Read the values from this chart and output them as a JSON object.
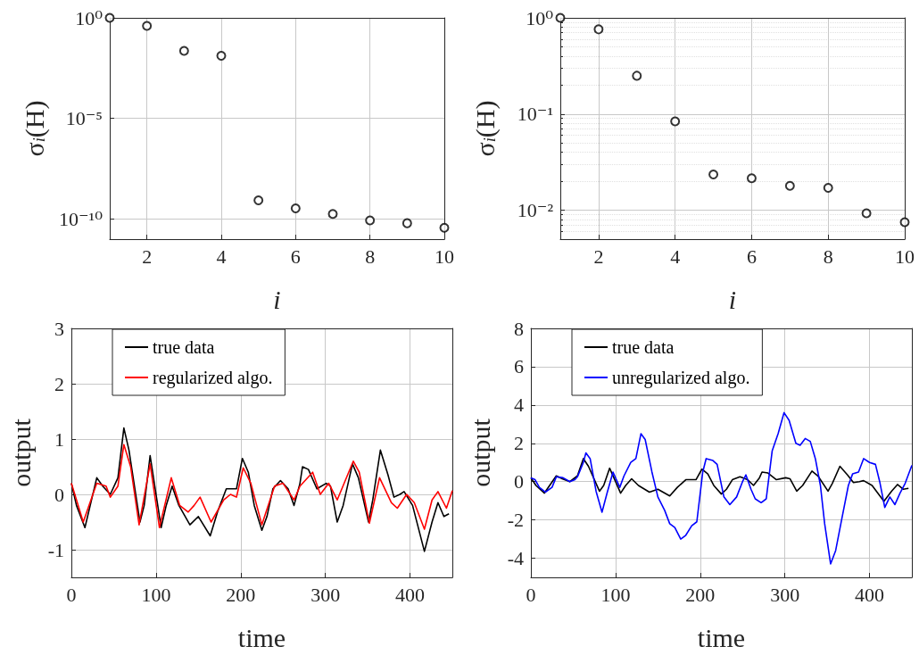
{
  "chart_data": [
    {
      "type": "scatter",
      "xlabel": "i",
      "ylabel": "σ$_{i}$(H)",
      "log": "y",
      "grid": true,
      "marker": "circle",
      "xlim": [
        1,
        10
      ],
      "xticks": [
        2,
        4,
        6,
        8,
        10
      ],
      "ylim": [
        1e-11,
        1
      ],
      "yticks": [
        {
          "value": 1,
          "label": "10⁰"
        },
        {
          "value": 1e-05,
          "label": "10⁻⁵"
        },
        {
          "value": 1e-10,
          "label": "10⁻¹⁰"
        }
      ],
      "series": [
        {
          "color": "#000000",
          "x": [
            1,
            2,
            3,
            4,
            5,
            6,
            7,
            8,
            9,
            10
          ],
          "values": [
            1,
            0.4,
            0.023,
            0.013,
            8.5e-10,
            3.4e-10,
            1.8e-10,
            8.5e-11,
            6.2e-11,
            3.7e-11
          ]
        }
      ]
    },
    {
      "type": "scatter",
      "xlabel": "i",
      "ylabel": "σ$_{i}$(H)",
      "log": "y",
      "grid": true,
      "marker": "circle",
      "xlim": [
        1,
        10
      ],
      "xticks": [
        2,
        4,
        6,
        8,
        10
      ],
      "ylim": [
        0.005,
        1
      ],
      "yticks": [
        {
          "value": 1,
          "label": "10⁰"
        },
        {
          "value": 0.1,
          "label": "10⁻¹"
        },
        {
          "value": 0.01,
          "label": "10⁻²"
        }
      ],
      "series": [
        {
          "color": "#000000",
          "x": [
            1,
            2,
            3,
            4,
            5,
            6,
            7,
            8,
            9,
            10
          ],
          "values": [
            1,
            0.76,
            0.25,
            0.084,
            0.0235,
            0.0215,
            0.0179,
            0.0171,
            0.0093,
            0.0075
          ]
        }
      ]
    },
    {
      "type": "line",
      "xlabel": "time",
      "ylabel": "output",
      "grid": true,
      "legend": "top left",
      "xlim": [
        0,
        450
      ],
      "xticks": [
        0,
        100,
        200,
        300,
        400
      ],
      "ylim": [
        -1.5,
        3
      ],
      "yticks": [
        -1,
        0,
        1,
        2,
        3
      ],
      "series": [
        {
          "name": "true data",
          "color": "#000000",
          "x": [
            0,
            6,
            16,
            30,
            37,
            46,
            55,
            62,
            68,
            81,
            86,
            93,
            100,
            106,
            112,
            119,
            127,
            140,
            150,
            164,
            173,
            183,
            190,
            195,
            202,
            209,
            216,
            225,
            231,
            238,
            247,
            256,
            263,
            270,
            273,
            280,
            290,
            301,
            306,
            314,
            321,
            332,
            339,
            351,
            356,
            365,
            374,
            381,
            388,
            393,
            403,
            417,
            426,
            433,
            440,
            446
          ],
          "values": [
            0.2,
            -0.2,
            -0.6,
            0.3,
            0.15,
            0.0,
            0.3,
            1.2,
            0.8,
            -0.5,
            -0.2,
            0.7,
            0.0,
            -0.6,
            -0.2,
            0.15,
            -0.2,
            -0.55,
            -0.4,
            -0.75,
            -0.3,
            0.1,
            0.1,
            0.1,
            0.65,
            0.4,
            -0.2,
            -0.65,
            -0.4,
            0.1,
            0.25,
            0.1,
            -0.2,
            0.2,
            0.5,
            0.45,
            0.1,
            0.2,
            0.15,
            -0.5,
            -0.2,
            0.55,
            0.3,
            -0.5,
            -0.1,
            0.8,
            0.35,
            -0.05,
            0.0,
            0.05,
            -0.2,
            -1.03,
            -0.5,
            -0.15,
            -0.4,
            -0.35
          ]
        },
        {
          "name": "regularized algo.",
          "color": "#ff0000",
          "x": [
            0,
            14,
            30,
            41,
            46,
            55,
            62,
            70,
            80,
            93,
            104,
            118,
            128,
            138,
            145,
            152,
            165,
            180,
            188,
            195,
            203,
            212,
            225,
            240,
            250,
            263,
            270,
            285,
            294,
            304,
            314,
            333,
            340,
            352,
            364,
            378,
            385,
            396,
            405,
            417,
            426,
            433,
            443,
            450
          ],
          "values": [
            0.2,
            -0.5,
            0.2,
            0.15,
            -0.05,
            0.15,
            0.9,
            0.5,
            -0.55,
            0.55,
            -0.6,
            0.3,
            -0.2,
            -0.32,
            -0.2,
            -0.05,
            -0.5,
            -0.1,
            0.0,
            -0.05,
            0.48,
            0.2,
            -0.55,
            0.15,
            0.2,
            -0.1,
            0.15,
            0.4,
            0.0,
            0.2,
            -0.1,
            0.6,
            0.4,
            -0.52,
            0.3,
            -0.15,
            -0.25,
            0.0,
            -0.15,
            -0.63,
            -0.1,
            0.05,
            -0.25,
            0.07
          ]
        }
      ]
    },
    {
      "type": "line",
      "xlabel": "time",
      "ylabel": "output",
      "grid": true,
      "legend": "top left",
      "xlim": [
        0,
        450
      ],
      "xticks": [
        0,
        100,
        200,
        300,
        400
      ],
      "ylim": [
        -5,
        8
      ],
      "yticks": [
        -4,
        -2,
        0,
        2,
        4,
        6,
        8
      ],
      "series": [
        {
          "name": "true data",
          "color": "#000000",
          "x": [
            0,
            6,
            16,
            30,
            37,
            46,
            55,
            62,
            68,
            81,
            86,
            93,
            100,
            106,
            112,
            119,
            127,
            140,
            150,
            164,
            173,
            183,
            190,
            195,
            202,
            209,
            216,
            225,
            231,
            238,
            247,
            256,
            263,
            270,
            273,
            280,
            290,
            301,
            306,
            314,
            321,
            332,
            339,
            351,
            356,
            365,
            374,
            381,
            388,
            393,
            403,
            417,
            426,
            433,
            440,
            446
          ],
          "values": [
            0.2,
            -0.2,
            -0.6,
            0.3,
            0.15,
            0.0,
            0.3,
            1.2,
            0.8,
            -0.5,
            -0.2,
            0.7,
            0.0,
            -0.6,
            -0.2,
            0.15,
            -0.2,
            -0.55,
            -0.4,
            -0.75,
            -0.3,
            0.1,
            0.1,
            0.1,
            0.65,
            0.4,
            -0.2,
            -0.65,
            -0.4,
            0.1,
            0.25,
            0.1,
            -0.2,
            0.2,
            0.5,
            0.45,
            0.1,
            0.2,
            0.15,
            -0.5,
            -0.2,
            0.55,
            0.3,
            -0.5,
            -0.1,
            0.8,
            0.35,
            -0.05,
            0.0,
            0.05,
            -0.2,
            -1.03,
            -0.5,
            -0.15,
            -0.4,
            -0.35
          ]
        },
        {
          "name": "unregularized algo.",
          "color": "#0000ff",
          "x": [
            0,
            5,
            10,
            17,
            25,
            30,
            38,
            46,
            52,
            55,
            62,
            65,
            70,
            77,
            84,
            90,
            97,
            105,
            110,
            118,
            124,
            130,
            135,
            143,
            150,
            158,
            164,
            170,
            177,
            183,
            190,
            196,
            203,
            207,
            215,
            220,
            228,
            235,
            243,
            250,
            254,
            260,
            265,
            272,
            278,
            285,
            292,
            299,
            305,
            313,
            318,
            324,
            330,
            336,
            342,
            347,
            354,
            360,
            367,
            375,
            380,
            387,
            393,
            400,
            407,
            412,
            418,
            424,
            430,
            436,
            442,
            450
          ],
          "values": [
            0.2,
            0.1,
            -0.3,
            -0.55,
            -0.3,
            0.25,
            0.2,
            0.0,
            0.1,
            0.25,
            1.0,
            1.5,
            1.2,
            -0.5,
            -1.6,
            -0.6,
            0.5,
            -0.3,
            0.3,
            1.0,
            1.2,
            2.5,
            2.2,
            0.5,
            -0.8,
            -1.5,
            -2.2,
            -2.4,
            -3.0,
            -2.8,
            -2.3,
            -2.1,
            0.5,
            1.2,
            1.1,
            0.9,
            -0.8,
            -1.2,
            -0.8,
            0.0,
            0.35,
            -0.4,
            -0.9,
            -1.1,
            -0.9,
            1.6,
            2.5,
            3.6,
            3.2,
            2.0,
            1.9,
            2.25,
            2.1,
            1.2,
            -0.2,
            -2.2,
            -4.3,
            -3.6,
            -2.0,
            -0.2,
            0.4,
            0.5,
            1.2,
            1.0,
            0.9,
            0.0,
            -1.35,
            -0.8,
            -1.2,
            -0.6,
            -0.1,
            0.85
          ]
        }
      ]
    }
  ]
}
